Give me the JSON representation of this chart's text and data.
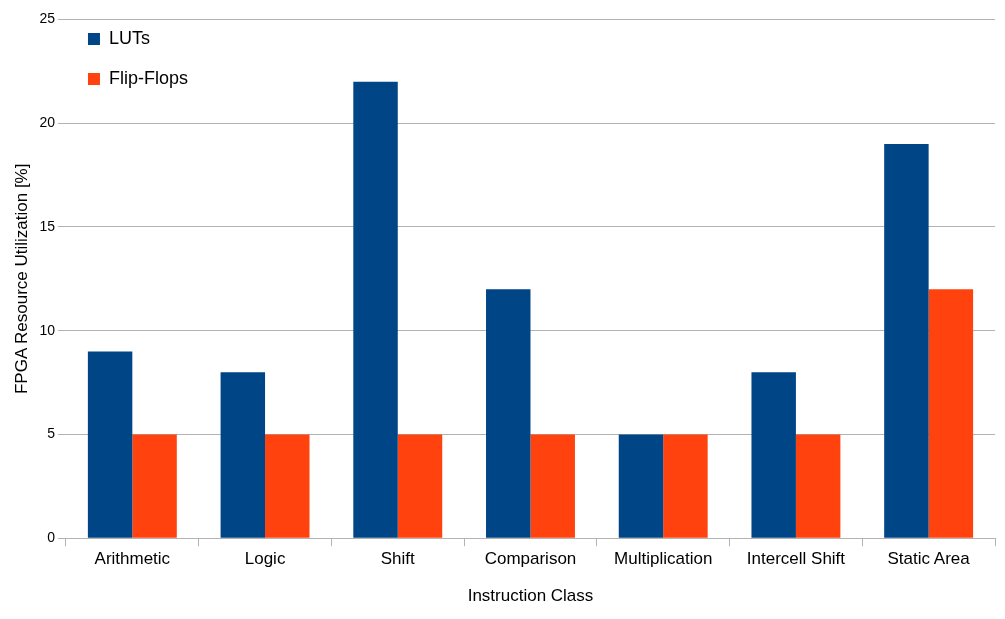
{
  "chart_data": {
    "type": "bar",
    "xlabel": "Instruction Class",
    "ylabel": "FPGA Resource Utilization [%]",
    "categories": [
      "Arithmetic",
      "Logic",
      "Shift",
      "Comparison",
      "Multiplication",
      "Intercell Shift",
      "Static Area"
    ],
    "series": [
      {
        "name": "LUTs",
        "color": "#004586",
        "values": [
          9,
          8,
          22,
          12,
          5,
          8,
          19
        ]
      },
      {
        "name": "Flip-Flops",
        "color": "#ff420e",
        "values": [
          5,
          5,
          5,
          5,
          5,
          5,
          12
        ]
      }
    ],
    "ylim": [
      0,
      25
    ],
    "yticks": [
      0,
      5,
      10,
      15,
      20,
      25
    ],
    "grid": "y",
    "legend": "top left"
  }
}
